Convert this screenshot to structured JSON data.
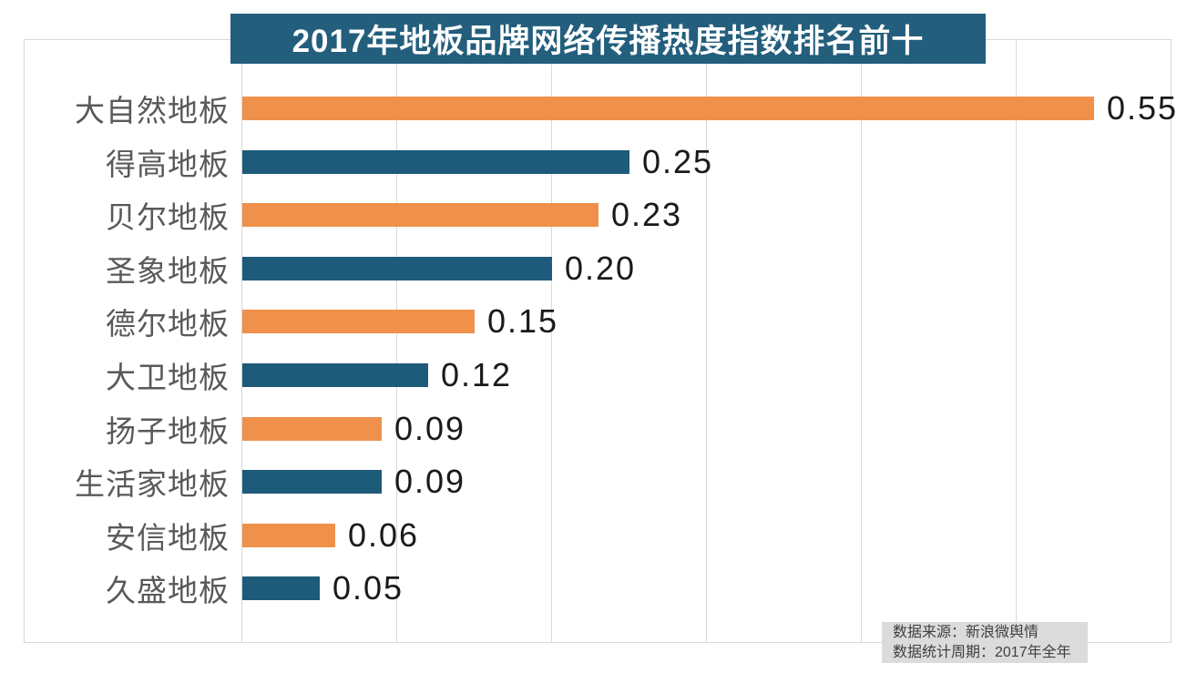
{
  "title": "2017年地板品牌网络传播热度指数排名前十",
  "source_note": {
    "line1": "数据来源：新浪微舆情",
    "line2": "数据统计周期：2017年全年"
  },
  "colors": {
    "title_bg": "#235E7D",
    "title_text": "#FFFFFF",
    "bar_orange": "#EF914B",
    "bar_teal": "#1E5A7A",
    "grid_line": "#D9D9D9",
    "category_label": "#595959",
    "value_label": "#1A1A1A",
    "note_bg": "#DBDBDB",
    "note_text": "#404040"
  },
  "chart_data": {
    "type": "bar",
    "orientation": "horizontal",
    "title": "2017年地板品牌网络传播热度指数排名前十",
    "categories": [
      "大自然地板",
      "得高地板",
      "贝尔地板",
      "圣象地板",
      "德尔地板",
      "大卫地板",
      "扬子地板",
      "生活家地板",
      "安信地板",
      "久盛地板"
    ],
    "values": [
      0.55,
      0.25,
      0.23,
      0.2,
      0.15,
      0.12,
      0.09,
      0.09,
      0.06,
      0.05
    ],
    "value_labels": [
      "0.55",
      "0.25",
      "0.23",
      "0.20",
      "0.15",
      "0.12",
      "0.09",
      "0.09",
      "0.06",
      "0.05"
    ],
    "xlim": [
      0,
      0.6
    ],
    "grid": true,
    "gridline_interval": 0.1,
    "bar_color_pattern": [
      "#EF914B",
      "#1E5A7A"
    ],
    "legend": "none",
    "data_labels": true,
    "source": [
      "数据来源：新浪微舆情",
      "数据统计周期：2017年全年"
    ]
  }
}
